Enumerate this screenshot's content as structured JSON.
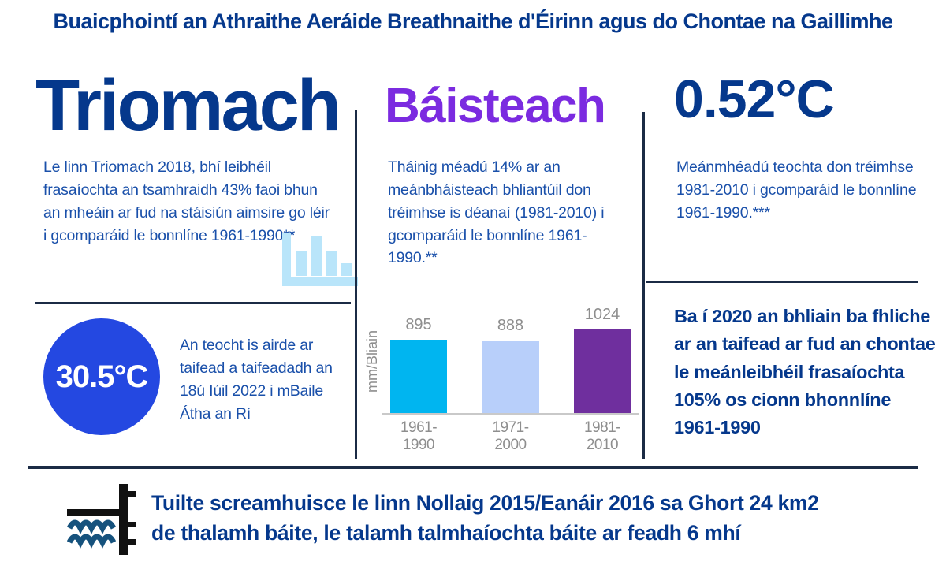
{
  "title": "Buaicphointí an Athraithe Aeráide Breathnaithe d'Éirinn agus do Chontae na Gaillimhe",
  "drought": {
    "heading": "Triomach",
    "body": "Le linn Triomach 2018, bhí leibhéil frasaíochta an tsamhraidh 43% faoi bhun an mheáin ar fud na stáisiún aimsire go léir i gcomparáid le bonnlíne 1961-1990**",
    "record": {
      "value": "30.5°C",
      "caption": "An teocht is airde ar taifead a taifeadadh an 18ú Iúil 2022 i mBaile Átha an Rí"
    }
  },
  "rainfall": {
    "heading": "Báisteach",
    "body": "Tháinig méadú 14% ar an meánbháisteach bhliantúil don tréimhse is déanaí (1981-2010) i gcomparáid le bonnlíne 1961-1990.**"
  },
  "chart_data": {
    "type": "bar",
    "title": "",
    "xlabel": "",
    "ylabel": "mm/Bliain",
    "categories": [
      "1961-1990",
      "1971-2000",
      "1981-2010"
    ],
    "values": [
      895,
      888,
      1024
    ],
    "ylim": [
      0,
      1024
    ],
    "bar_colors": [
      "#00b5f0",
      "#b8cffa",
      "#6f2f9e"
    ],
    "grid": false,
    "legend": false
  },
  "temperature": {
    "heading": "0.52°C",
    "body": "Meánmhéadú teochta don tréimhse 1981-2010 i gcomparáid le bonnlíne 1961-1990.***",
    "wettest": "Ba í 2020 an bhliain ba fhliche ar an taifead ar fud an chontae le meánleibhéil frasaíochta 105% os cionn bhonnlíne 1961-1990"
  },
  "flood": {
    "line1": "Tuilte screamhuisce le linn Nollaig 2015/Eanáir 2016 sa Ghort 24 km2",
    "line2": "de thalamh báite, le talamh talmhaíochta báite ar feadh 6 mhí"
  },
  "colors": {
    "heading_navy": "#05388c",
    "body_blue": "#1a50aa",
    "rain_purple": "#7b2be0",
    "divider_navy": "#1b2b45",
    "circle_blue": "#2448e1",
    "icon_light_blue": "#b9e5fa",
    "bar_cyan": "#00b5f0",
    "bar_light_blue": "#b8cffa",
    "bar_purple": "#6f2f9e",
    "chart_gray": "#8e8e8e",
    "wave_blue": "#16527d"
  }
}
